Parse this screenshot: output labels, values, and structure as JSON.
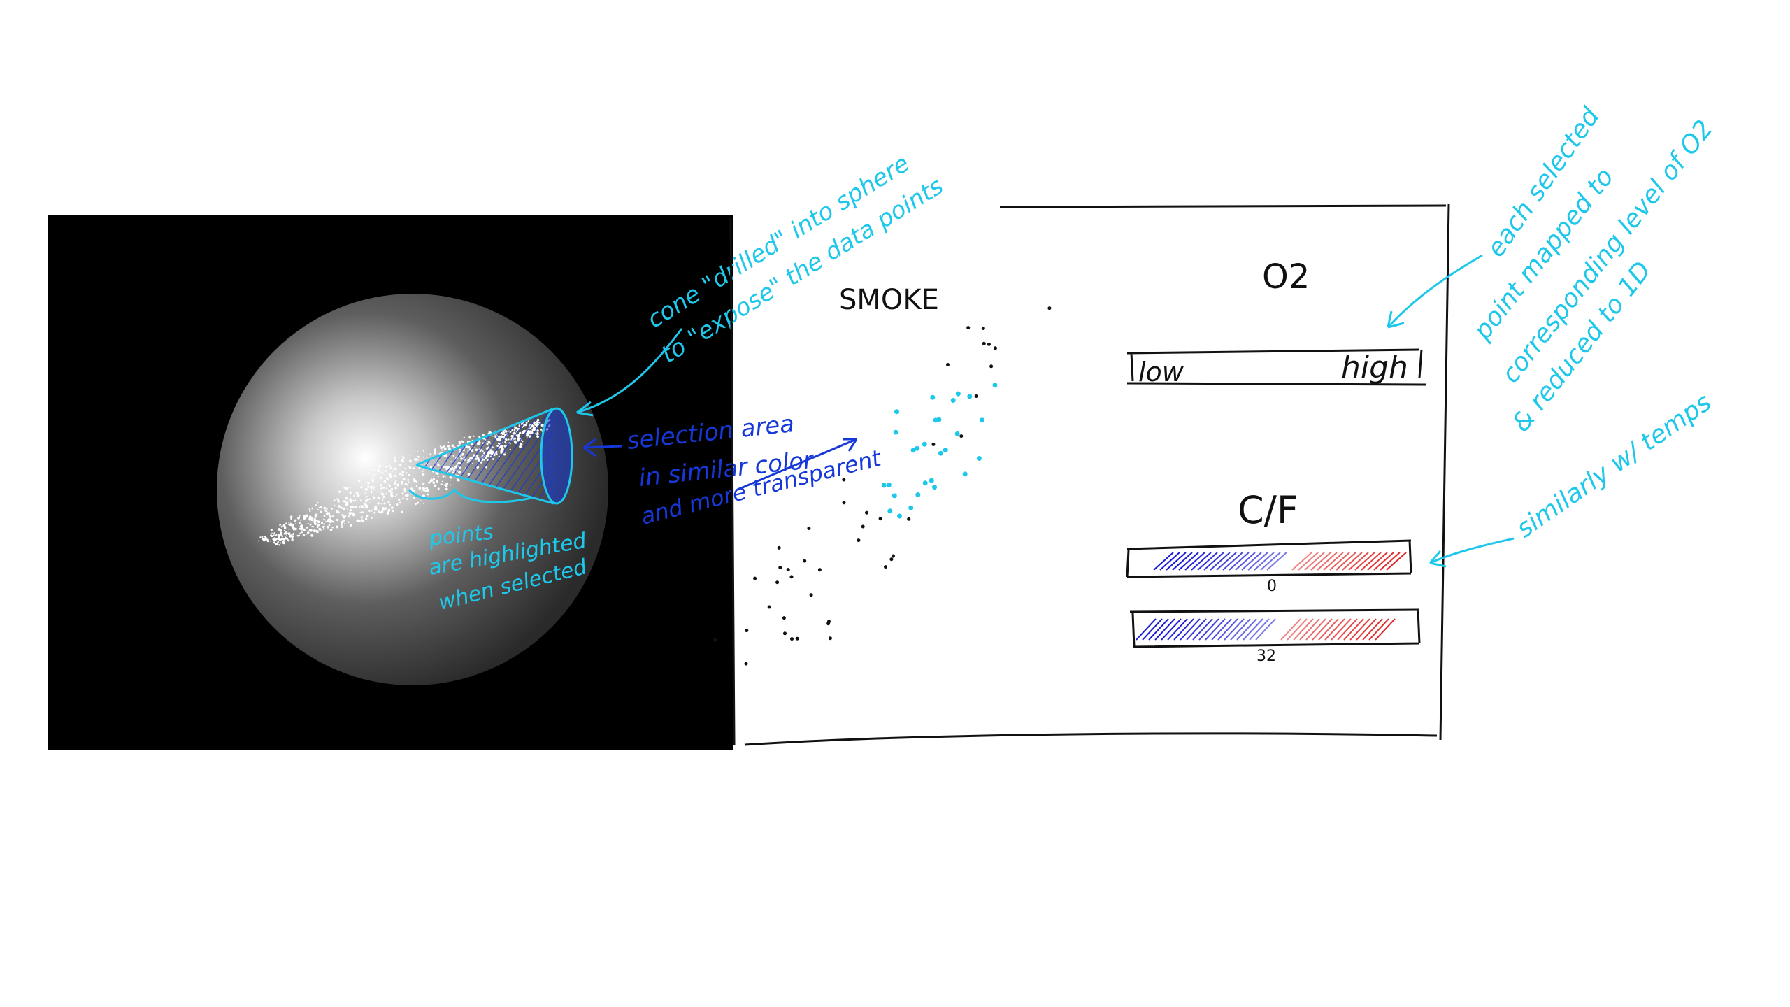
{
  "colors": {
    "background": "#ffffff",
    "viewport_bg": "#000000",
    "annotation_cyan": "#1ec8ea",
    "annotation_blue": "#1638d8",
    "ink": "#111111",
    "cold": "#1a1ad6",
    "hot": "#e02020"
  },
  "viewport": {
    "annotations": {
      "cone_line1": "cone \"drilled\" into sphere",
      "cone_line2": "to \"expose\" the data points",
      "selection_line1": "selection area",
      "selection_line2": "in similar color",
      "selection_line3": "and more transparent",
      "points_line1": "points",
      "points_line2": "are highlighted",
      "points_line3": "when selected"
    }
  },
  "panel": {
    "smoke_label": "SMOKE",
    "o2": {
      "title": "O2",
      "low_label": "low",
      "high_label": "high"
    },
    "temp": {
      "title": "C/F",
      "celsius_tick": "0",
      "fahrenheit_tick": "32"
    }
  },
  "side_notes": {
    "mapping_line1": "each selected",
    "mapping_line2": "point mapped to",
    "mapping_line3": "corresponding level of O2",
    "mapping_line4": "& reduced to 1D",
    "temps_note": "similarly w/ temps"
  }
}
